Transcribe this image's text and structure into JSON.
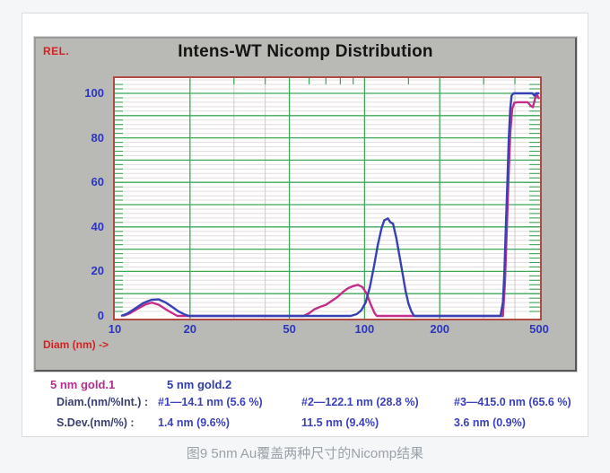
{
  "window": {
    "title": "Intens-WT Nicomp Distribution",
    "rel_label": "REL.",
    "x_axis_label": "Diam (nm) ->"
  },
  "legend": {
    "series1": "5 nm gold.1",
    "series2": "5 nm gold.2"
  },
  "table": {
    "diam_label": "Diam.(nm/%Int.) :",
    "sdev_label": "S.Dev.(nm/%) :",
    "diam_values": [
      "#1—14.1 nm (5.6 %)",
      "#2—122.1 nm (28.8 %)",
      "#3—415.0 nm (65.6 %)"
    ],
    "sdev_values": [
      "1.4 nm (9.6%)",
      "11.5 nm (9.4%)",
      "3.6 nm (0.9%)"
    ]
  },
  "caption": "图9 5nm Au覆盖两种尺寸的Nicomp结果",
  "colors": {
    "series1_magenta": "#c22e8a",
    "series2_blue": "#3642b4",
    "grid_major_green": "#3fa75a",
    "grid_minor_line": "#e3dcdc",
    "grid_minor_vertical_gray": "#cccccc",
    "plot_border_red": "#b04a42",
    "axis_tick_blue": "#2d35c0",
    "red_label": "#d32222",
    "window_gray": "#b9bab5",
    "caption_gray": "#9aa1a8"
  },
  "chart_data": {
    "type": "line",
    "title": "Intens-WT Nicomp Distribution",
    "xlabel": "Diam (nm) ->",
    "ylabel": "REL.",
    "x_scale": "log",
    "xlim": [
      10,
      500
    ],
    "ylim": [
      0,
      107
    ],
    "grid": {
      "y_major_step": 10,
      "y_minor_step": 2,
      "x_major_green": [
        20,
        50,
        100,
        200
      ],
      "x_minor_gray": [
        30,
        40,
        300,
        400
      ],
      "x_top_ticks": [
        30,
        40,
        60,
        70,
        80,
        90,
        150,
        300,
        400
      ]
    },
    "x_tick_labels": [
      10,
      20,
      50,
      100,
      200,
      500
    ],
    "y_tick_labels": [
      0,
      20,
      40,
      60,
      80,
      100
    ],
    "series": [
      {
        "name": "5 nm gold.1",
        "color": "#c22e8a",
        "points": [
          [
            10.8,
            0
          ],
          [
            11.5,
            1.2
          ],
          [
            12.5,
            3.6
          ],
          [
            13.3,
            5.2
          ],
          [
            14.1,
            6
          ],
          [
            15,
            5
          ],
          [
            16,
            3
          ],
          [
            17,
            1.2
          ],
          [
            17.8,
            0
          ],
          [
            57,
            0
          ],
          [
            60,
            1.2
          ],
          [
            63,
            3
          ],
          [
            66,
            4
          ],
          [
            70,
            5
          ],
          [
            74,
            6.8
          ],
          [
            78,
            8.6
          ],
          [
            82,
            10.8
          ],
          [
            86,
            12.5
          ],
          [
            90,
            13.4
          ],
          [
            94,
            14
          ],
          [
            98,
            13
          ],
          [
            102,
            10
          ],
          [
            106,
            5
          ],
          [
            110,
            1
          ],
          [
            112,
            0
          ],
          [
            358,
            0
          ],
          [
            365,
            15
          ],
          [
            371,
            38
          ],
          [
            377,
            62
          ],
          [
            383,
            82
          ],
          [
            390,
            93
          ],
          [
            398,
            95.8
          ],
          [
            410,
            96
          ],
          [
            450,
            96
          ],
          [
            462,
            94.5
          ],
          [
            472,
            93.8
          ],
          [
            480,
            97
          ],
          [
            488,
            100
          ],
          [
            494,
            98.5
          ],
          [
            500,
            97.5
          ]
        ]
      },
      {
        "name": "5 nm gold.2",
        "color": "#3642b4",
        "points": [
          [
            10.6,
            0
          ],
          [
            11.2,
            1
          ],
          [
            12,
            3.2
          ],
          [
            13,
            5.8
          ],
          [
            14,
            7.2
          ],
          [
            15,
            7.4
          ],
          [
            16,
            6
          ],
          [
            17,
            4
          ],
          [
            18,
            2
          ],
          [
            19,
            0.7
          ],
          [
            19.8,
            0
          ],
          [
            88,
            0
          ],
          [
            93,
            0.8
          ],
          [
            97,
            2.5
          ],
          [
            101,
            6
          ],
          [
            105,
            13
          ],
          [
            109,
            22
          ],
          [
            113,
            32
          ],
          [
            117,
            39.5
          ],
          [
            120,
            43
          ],
          [
            124,
            43.8
          ],
          [
            127,
            42
          ],
          [
            130,
            41.5
          ],
          [
            134,
            35
          ],
          [
            138,
            27
          ],
          [
            142,
            19
          ],
          [
            146,
            11
          ],
          [
            150,
            5.5
          ],
          [
            154,
            2
          ],
          [
            158,
            0
          ],
          [
            350,
            0
          ],
          [
            358,
            6
          ],
          [
            363,
            20
          ],
          [
            368,
            40
          ],
          [
            373,
            60
          ],
          [
            378,
            80
          ],
          [
            383,
            93
          ],
          [
            388,
            99
          ],
          [
            395,
            100
          ],
          [
            470,
            100
          ],
          [
            478,
            99
          ],
          [
            486,
            100
          ],
          [
            500,
            100
          ]
        ]
      }
    ]
  }
}
